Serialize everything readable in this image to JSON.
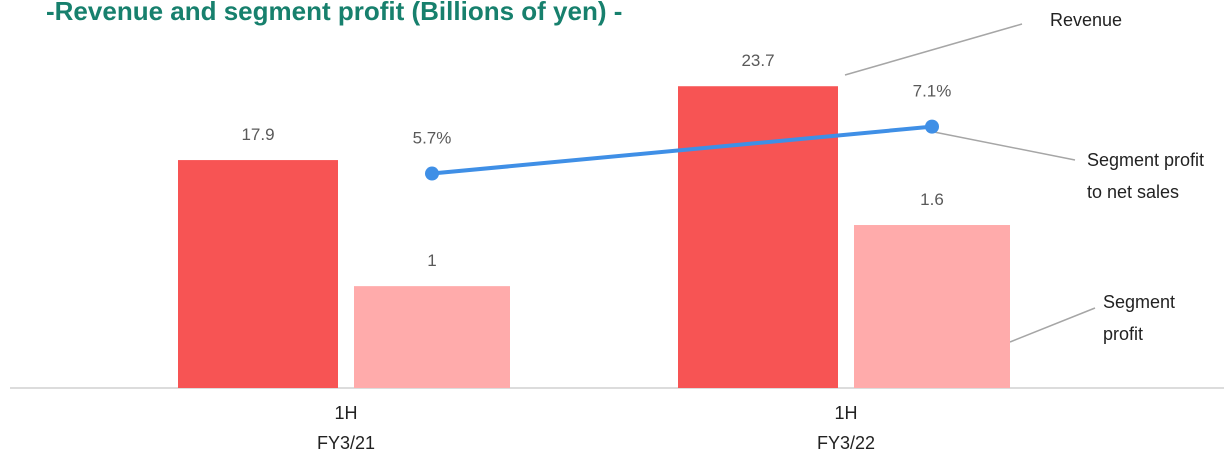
{
  "chart_data": {
    "type": "bar",
    "title": "-Revenue and segment profit (Billions of yen) -",
    "categories": [
      "1H\nFY3/21",
      "1H\nFY3/22"
    ],
    "series": [
      {
        "name": "Revenue",
        "color": "#f75454",
        "values": [
          17.9,
          23.7
        ]
      },
      {
        "name": "Segment profit",
        "color": "#ffabab",
        "values": [
          1.0,
          1.6
        ],
        "axis": "y3"
      },
      {
        "name": "Segment profit to net sales",
        "type": "line",
        "color": "#3f8fe6",
        "values": [
          5.7,
          7.1
        ],
        "value_labels": [
          "5.7%",
          "7.1%"
        ],
        "axis": "y2"
      }
    ],
    "ylim": [
      0,
      30
    ],
    "y2lim": [
      -0.7,
      10.7
    ],
    "y3lim": [
      0,
      3.75
    ]
  }
}
